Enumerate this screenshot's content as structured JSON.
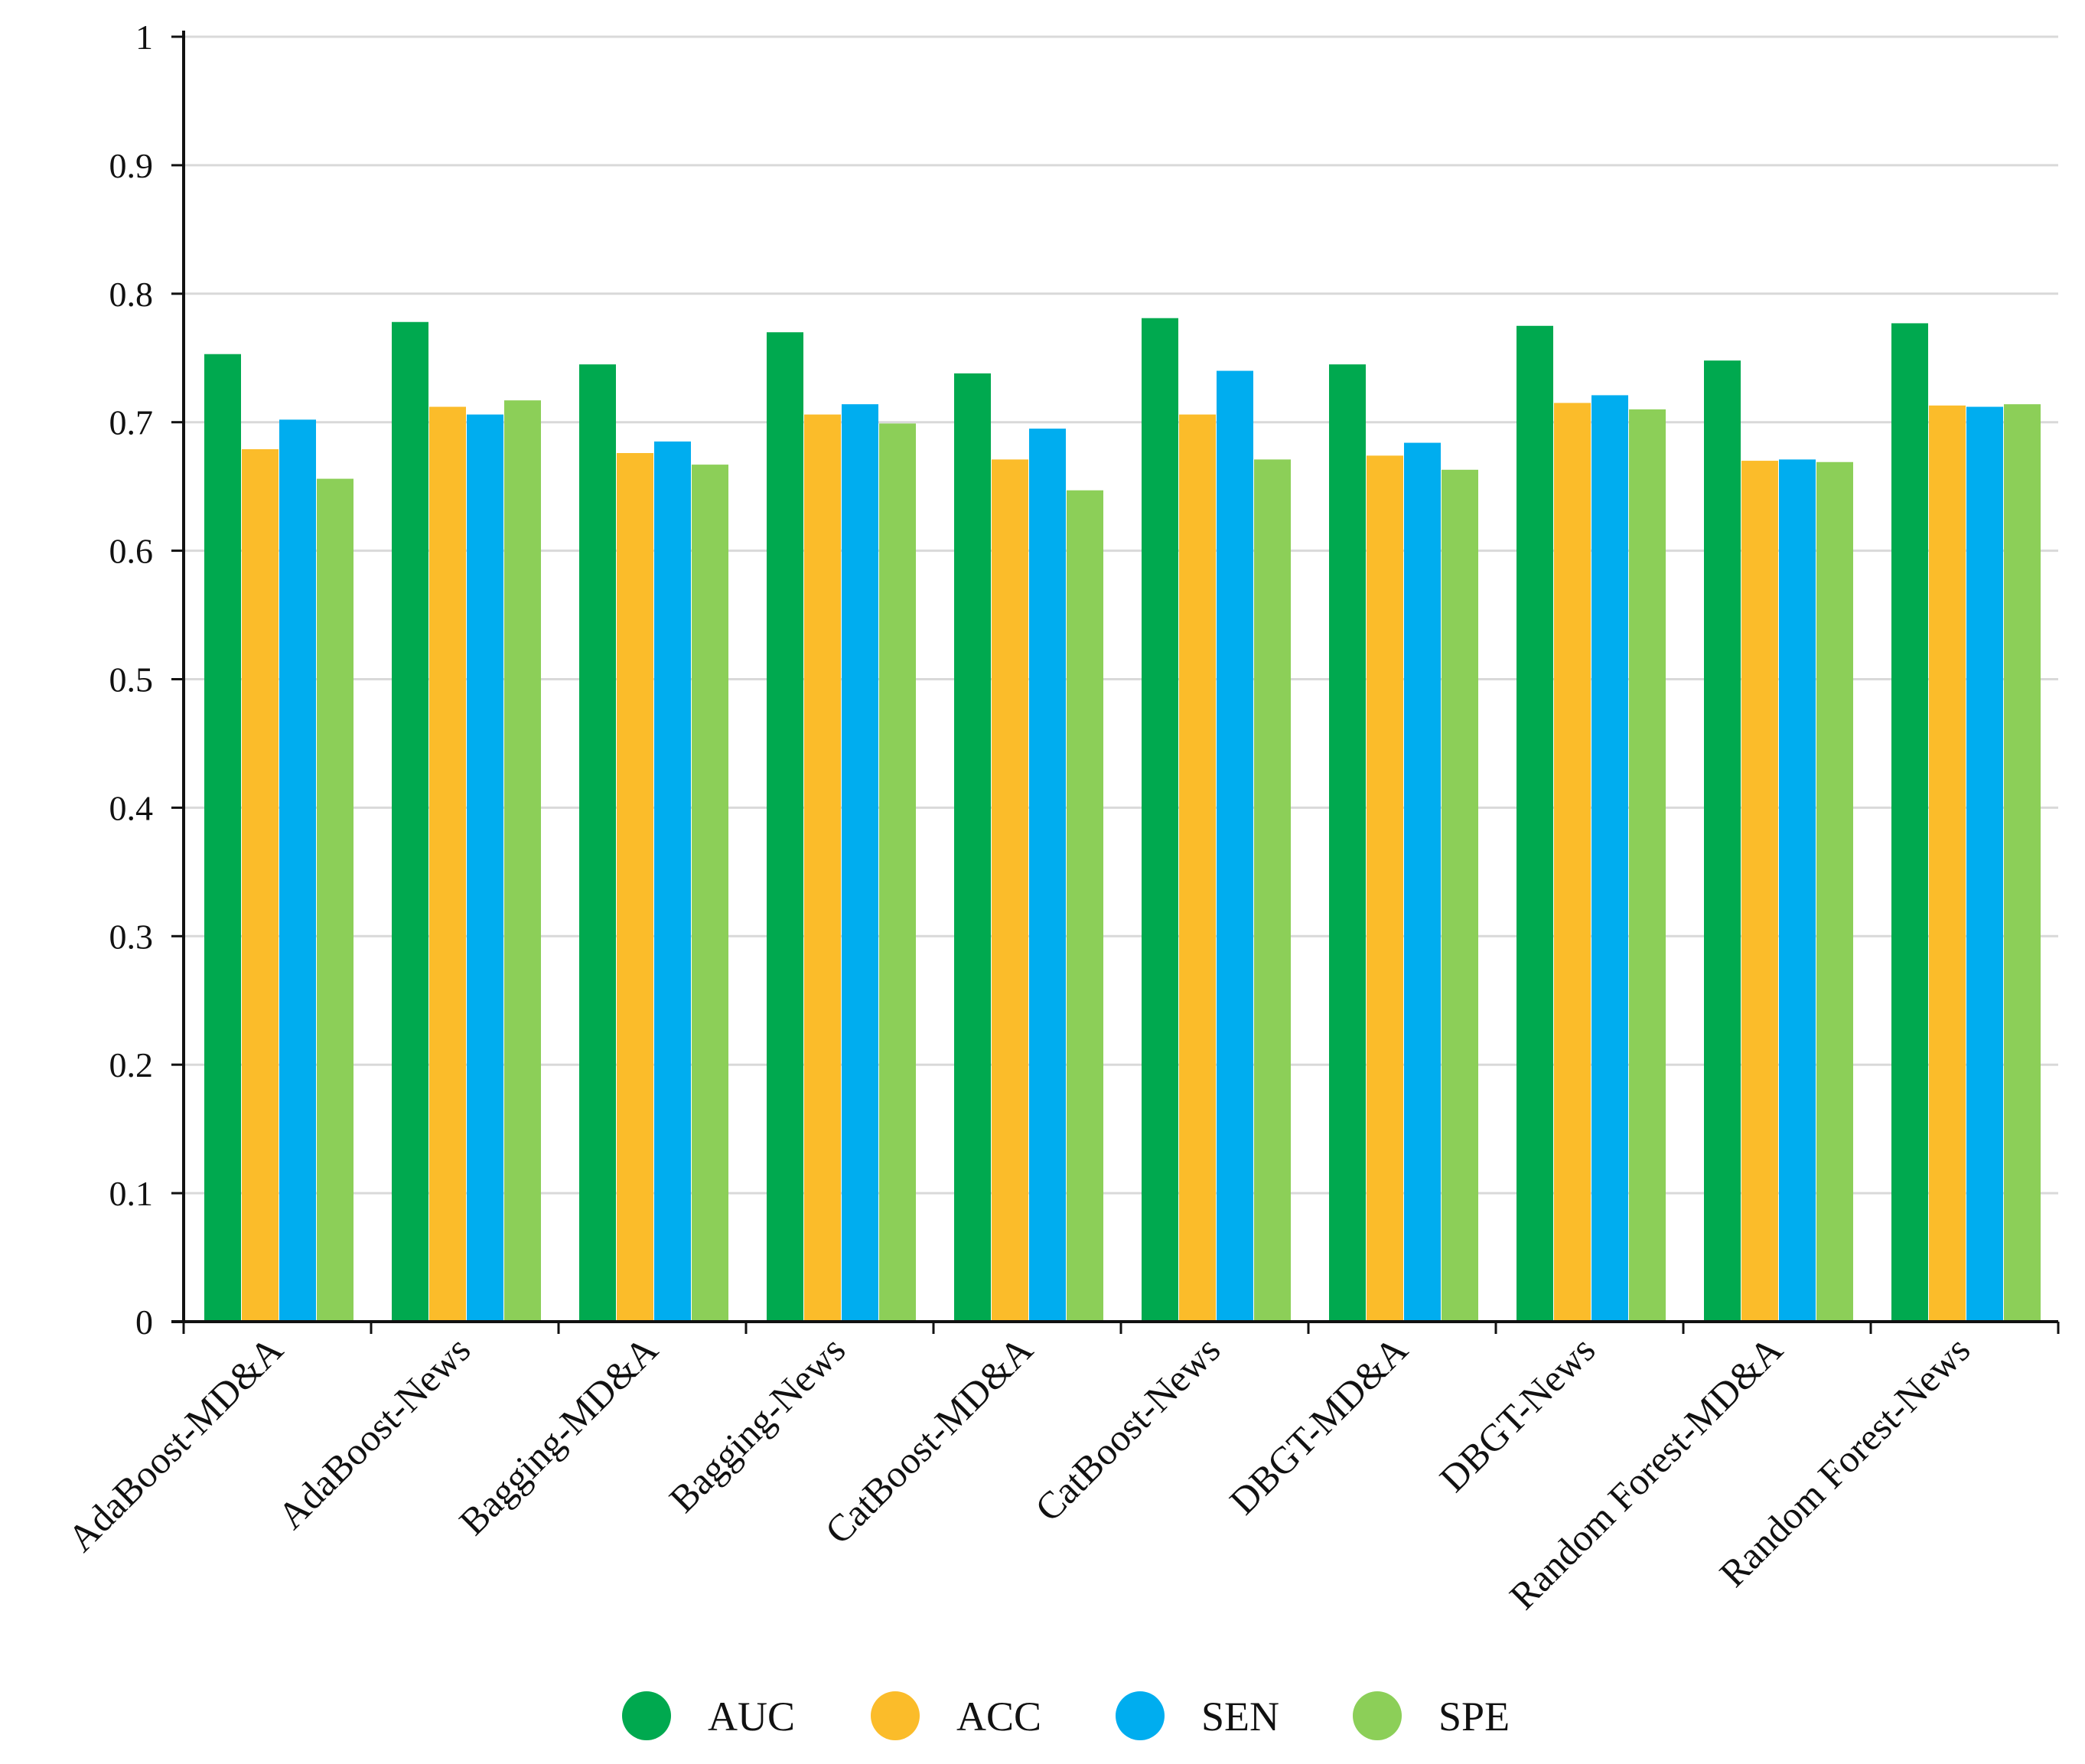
{
  "chart_data": {
    "type": "bar",
    "title": "",
    "xlabel": "",
    "ylabel": "",
    "ylim": [
      0,
      1
    ],
    "yticks": [
      0,
      0.1,
      0.2,
      0.3,
      0.4,
      0.5,
      0.6,
      0.7,
      0.8,
      0.9,
      1
    ],
    "ytick_labels": [
      "0",
      "0.1",
      "0.2",
      "0.3",
      "0.4",
      "0.5",
      "0.6",
      "0.7",
      "0.8",
      "0.9",
      "1"
    ],
    "grid": "horizontal",
    "legend_position": "bottom-center",
    "categories": [
      "AdaBoost-MD&A",
      "AdaBoost-News",
      "Bagging-MD&A",
      "Bagging-News",
      "CatBoost-MD&A",
      "CatBoost-News",
      "DBGT-MD&A",
      "DBGT-News",
      "Random Forest-MD&A",
      "Random Forest-News"
    ],
    "series": [
      {
        "name": "AUC",
        "color": "#00a94f",
        "values": [
          0.753,
          0.778,
          0.745,
          0.77,
          0.738,
          0.781,
          0.745,
          0.775,
          0.748,
          0.777
        ]
      },
      {
        "name": "ACC",
        "color": "#fbbc2a",
        "values": [
          0.679,
          0.712,
          0.676,
          0.706,
          0.671,
          0.706,
          0.674,
          0.715,
          0.67,
          0.713
        ]
      },
      {
        "name": "SEN",
        "color": "#00adef",
        "values": [
          0.702,
          0.706,
          0.685,
          0.714,
          0.695,
          0.74,
          0.684,
          0.721,
          0.671,
          0.712
        ]
      },
      {
        "name": "SPE",
        "color": "#8ccf58",
        "values": [
          0.656,
          0.717,
          0.667,
          0.699,
          0.647,
          0.671,
          0.663,
          0.71,
          0.669,
          0.714
        ]
      }
    ]
  }
}
